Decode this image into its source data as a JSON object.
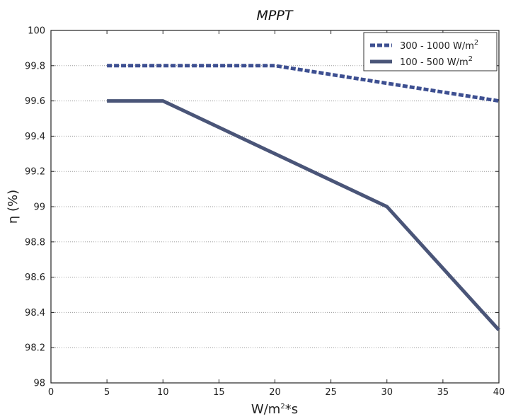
{
  "chart_data": {
    "type": "line",
    "title": "MPPT",
    "xlabel_base": "W/m",
    "xlabel_sup": "2",
    "xlabel_tail": "*s",
    "ylabel": "η (%)",
    "xlim": [
      0,
      40
    ],
    "ylim": [
      98,
      100
    ],
    "xticks": [
      0,
      5,
      10,
      15,
      20,
      25,
      30,
      35,
      40
    ],
    "yticks": [
      98,
      98.2,
      98.4,
      98.6,
      98.8,
      99,
      99.2,
      99.4,
      99.6,
      99.8,
      100
    ],
    "ytick_labels": [
      "98",
      "98.2",
      "98.4",
      "98.6",
      "98.8",
      "99",
      "99.2",
      "99.4",
      "99.6",
      "99.8",
      "100"
    ],
    "grid": "horizontal dotted",
    "legend_position": "top-right",
    "series": [
      {
        "name_base": "300 - 1000 W/m",
        "name_sup": "2",
        "style": "dashed",
        "color": "#3d4f91",
        "x": [
          5,
          10,
          20,
          30,
          40
        ],
        "y": [
          99.8,
          99.8,
          99.8,
          99.7,
          99.6
        ]
      },
      {
        "name_base": "100 - 500 W/m",
        "name_sup": "2",
        "style": "solid",
        "color": "#4a5578",
        "x": [
          5,
          10,
          20,
          30,
          40
        ],
        "y": [
          99.6,
          99.6,
          99.3,
          99.0,
          98.3
        ]
      }
    ]
  }
}
